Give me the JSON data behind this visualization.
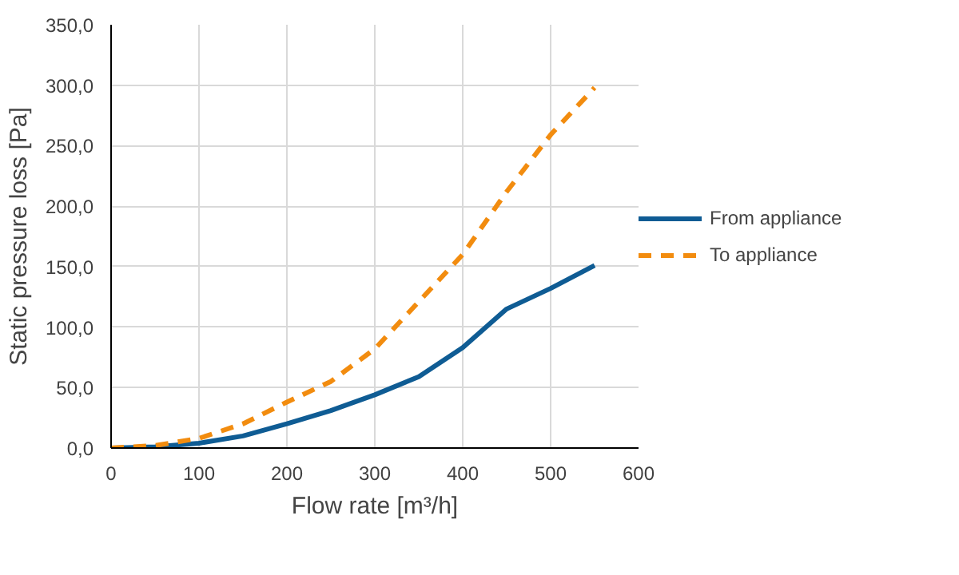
{
  "chart_data": {
    "type": "line",
    "xlabel": "Flow rate [m³/h]",
    "ylabel": "Static pressure loss [Pa]",
    "x": [
      0,
      50,
      100,
      150,
      200,
      250,
      300,
      350,
      400,
      450,
      500,
      550
    ],
    "series": [
      {
        "name": "From appliance",
        "color": "#0f5c94",
        "line_style": "solid",
        "values": [
          0,
          1,
          4,
          10,
          20,
          31,
          44,
          59,
          83,
          115,
          132,
          151
        ]
      },
      {
        "name": "To appliance",
        "color": "#f28c0f",
        "line_style": "dashed",
        "values": [
          0,
          2,
          8,
          20,
          38,
          55,
          82,
          121,
          160,
          212,
          259,
          298
        ]
      }
    ],
    "xlim": [
      0,
      600
    ],
    "xticks": [
      0,
      100,
      200,
      300,
      400,
      500,
      600
    ],
    "ylim": [
      0,
      350
    ],
    "yticks": [
      {
        "value": 0,
        "label": "0,0"
      },
      {
        "value": 50,
        "label": "50,0"
      },
      {
        "value": 100,
        "label": "100,0"
      },
      {
        "value": 150,
        "label": "150,0"
      },
      {
        "value": 200,
        "label": "200,0"
      },
      {
        "value": 250,
        "label": "250,0"
      },
      {
        "value": 300,
        "label": "300,0"
      },
      {
        "value": 350,
        "label": "350,0"
      }
    ],
    "grid": true,
    "legend": "right",
    "marker": "none"
  }
}
